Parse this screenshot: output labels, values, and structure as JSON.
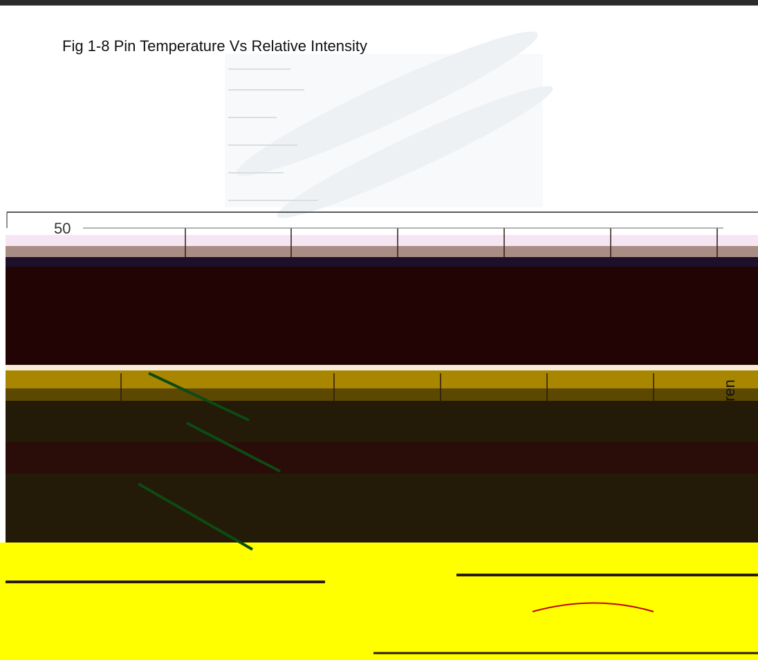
{
  "header": {
    "title": "Fig 1-8 Pin Temperature Vs Relative Intensity"
  },
  "figure": {
    "top_label": "50",
    "side_label": "ren"
  }
}
